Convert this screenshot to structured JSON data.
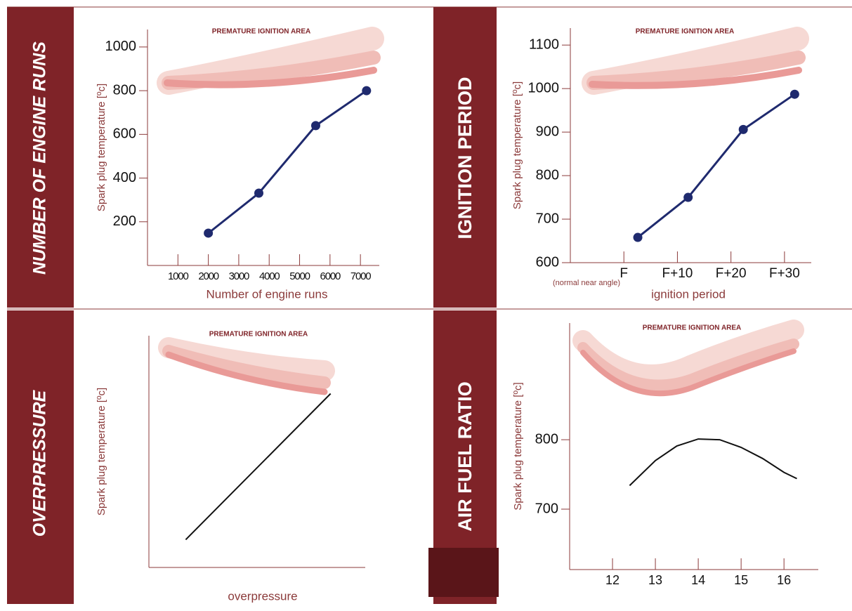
{
  "chart_data": [
    {
      "type": "line",
      "panel_label": "NUMBER OF ENGINE RUNS",
      "annotation": "PREMATURE IGNITION AREA",
      "x_label": "Number  of engine  runs",
      "y_label": "Spark plug temperature [ºc]",
      "x": [
        2000,
        3660,
        5530,
        7200
      ],
      "values": [
        148,
        331,
        640,
        800
      ],
      "color": "#1f2a6e",
      "markers": true,
      "xlim": [
        0,
        7620
      ],
      "ylim": [
        0,
        1080
      ],
      "xticks": [
        1000,
        2000,
        3000,
        4000,
        5000,
        6000,
        7000
      ],
      "yticks": [
        200,
        400,
        600,
        800,
        1000
      ]
    },
    {
      "type": "line",
      "panel_label": "IGNITION PERIOD",
      "annotation": "PREMATURE IGNITION AREA",
      "x_label": "ignition period",
      "x_note": "(normal near angle)",
      "y_label": "Spark plug temperature [ºc]",
      "x": [
        2.6,
        12,
        22.3,
        31.9
      ],
      "values": [
        658,
        750,
        906,
        987
      ],
      "color": "#1f2a6e",
      "markers": true,
      "xlim": [
        -10,
        35
      ],
      "ylim": [
        600,
        1139
      ],
      "xticks": [
        {
          "value": 0,
          "label": "F"
        },
        {
          "value": 10,
          "label": "F+10"
        },
        {
          "value": 20,
          "label": "F+20"
        },
        {
          "value": 30,
          "label": "F+30"
        }
      ],
      "yticks": [
        600,
        700,
        800,
        900,
        1000,
        1100
      ]
    },
    {
      "type": "line",
      "panel_label": "OVERPRESSURE",
      "annotation": "PREMATURE IGNITION AREA",
      "x_label": "overpressure",
      "y_label": "Spark plug temperature [ºc]",
      "x": [
        0.17,
        0.84
      ],
      "values": [
        0.12,
        0.75
      ],
      "color": "#111111",
      "markers": false,
      "xlim": [
        0,
        1
      ],
      "ylim": [
        0,
        1
      ],
      "xticks": [],
      "yticks": []
    },
    {
      "type": "line",
      "panel_label": "AIR FUEL RATIO",
      "annotation": "PREMATURE IGNITION AREA",
      "y_label": "Spark plug temperature [ºc]",
      "x": [
        12.4,
        13,
        13.5,
        14,
        14.5,
        15,
        15.5,
        16,
        16.3
      ],
      "values": [
        734,
        770,
        791,
        801,
        800,
        789,
        773,
        753,
        744
      ],
      "color": "#111111",
      "markers": false,
      "xlim": [
        11,
        16.8
      ],
      "ylim": [
        613,
        968
      ],
      "xticks": [
        12,
        13,
        14,
        15,
        16
      ],
      "yticks": [
        700,
        800
      ]
    }
  ]
}
